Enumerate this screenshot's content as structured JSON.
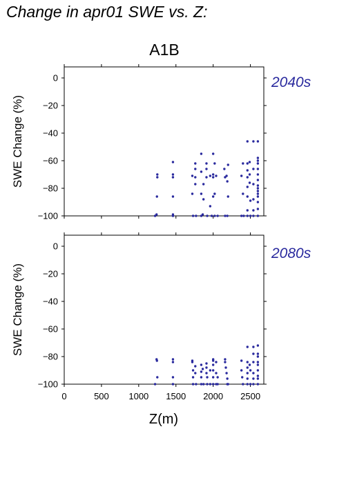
{
  "page_title": "Change in apr01 SWE vs. Z:",
  "chart_data": {
    "type": "scatter",
    "title": "A1B",
    "xlabel": "Z(m)",
    "ylabel": "SWE Change (%)",
    "xlim": [
      0,
      2680
    ],
    "ylim": [
      -100,
      8
    ],
    "xticks": [
      0,
      500,
      1000,
      1500,
      2000,
      2500
    ],
    "yticks": [
      0,
      -20,
      -40,
      -60,
      -80,
      -100
    ],
    "xtick_labels": [
      "0",
      "500",
      "1000",
      "1500",
      "2000",
      "2500"
    ],
    "ytick_labels": [
      "0",
      "−20",
      "−40",
      "−60",
      "−80",
      "−100"
    ],
    "point_color": "#2a2a9e",
    "panels": [
      {
        "label": "2040s",
        "points": [
          [
            1220,
            -100
          ],
          [
            1240,
            -99
          ],
          [
            1245,
            -86
          ],
          [
            1250,
            -70
          ],
          [
            1250,
            -72
          ],
          [
            1460,
            -61
          ],
          [
            1460,
            -70
          ],
          [
            1460,
            -72
          ],
          [
            1460,
            -86
          ],
          [
            1460,
            -99
          ],
          [
            1460,
            -100
          ],
          [
            1720,
            -71
          ],
          [
            1720,
            -84
          ],
          [
            1730,
            -100
          ],
          [
            1760,
            -62
          ],
          [
            1760,
            -66
          ],
          [
            1760,
            -72
          ],
          [
            1760,
            -77
          ],
          [
            1770,
            -100
          ],
          [
            1840,
            -55
          ],
          [
            1840,
            -68
          ],
          [
            1840,
            -84
          ],
          [
            1840,
            -100
          ],
          [
            1860,
            -99
          ],
          [
            1870,
            -77
          ],
          [
            1870,
            -88
          ],
          [
            1910,
            -62
          ],
          [
            1910,
            -66
          ],
          [
            1910,
            -72
          ],
          [
            1920,
            -100
          ],
          [
            1960,
            -71
          ],
          [
            1960,
            -93
          ],
          [
            1980,
            -100
          ],
          [
            2000,
            -55
          ],
          [
            2000,
            -70
          ],
          [
            2000,
            -72
          ],
          [
            2000,
            -86
          ],
          [
            2020,
            -62
          ],
          [
            2020,
            -84
          ],
          [
            2020,
            -100
          ],
          [
            2040,
            -71
          ],
          [
            2060,
            -100
          ],
          [
            2150,
            -66
          ],
          [
            2160,
            -72
          ],
          [
            2160,
            -100
          ],
          [
            2180,
            -71
          ],
          [
            2190,
            -75
          ],
          [
            2190,
            -100
          ],
          [
            2200,
            -63
          ],
          [
            2200,
            -86
          ],
          [
            2380,
            -71
          ],
          [
            2380,
            -100
          ],
          [
            2400,
            -62
          ],
          [
            2400,
            -84
          ],
          [
            2410,
            -100
          ],
          [
            2460,
            -46
          ],
          [
            2460,
            -62
          ],
          [
            2460,
            -67
          ],
          [
            2460,
            -72
          ],
          [
            2460,
            -79
          ],
          [
            2460,
            -86
          ],
          [
            2460,
            -96
          ],
          [
            2460,
            -100
          ],
          [
            2490,
            -61
          ],
          [
            2490,
            -70
          ],
          [
            2490,
            -76
          ],
          [
            2500,
            -89
          ],
          [
            2500,
            -100
          ],
          [
            2540,
            -46
          ],
          [
            2540,
            -66
          ],
          [
            2540,
            -77
          ],
          [
            2540,
            -88
          ],
          [
            2540,
            -96
          ],
          [
            2540,
            -100
          ],
          [
            2600,
            -46
          ],
          [
            2600,
            -58
          ],
          [
            2600,
            -60
          ],
          [
            2600,
            -62
          ],
          [
            2600,
            -66
          ],
          [
            2600,
            -70
          ],
          [
            2600,
            -74
          ],
          [
            2600,
            -78
          ],
          [
            2600,
            -80
          ],
          [
            2600,
            -82
          ],
          [
            2600,
            -84
          ],
          [
            2600,
            -86
          ],
          [
            2600,
            -90
          ],
          [
            2600,
            -95
          ],
          [
            2600,
            -100
          ]
        ]
      },
      {
        "label": "2080s",
        "points": [
          [
            1220,
            -100
          ],
          [
            1240,
            -82
          ],
          [
            1245,
            -83
          ],
          [
            1250,
            -95
          ],
          [
            1460,
            -82
          ],
          [
            1460,
            -84
          ],
          [
            1460,
            -95
          ],
          [
            1460,
            -100
          ],
          [
            1720,
            -83
          ],
          [
            1720,
            -84
          ],
          [
            1730,
            -90
          ],
          [
            1730,
            -95
          ],
          [
            1730,
            -100
          ],
          [
            1760,
            -87
          ],
          [
            1760,
            -92
          ],
          [
            1770,
            -100
          ],
          [
            1840,
            -86
          ],
          [
            1840,
            -91
          ],
          [
            1840,
            -95
          ],
          [
            1840,
            -100
          ],
          [
            1860,
            -89
          ],
          [
            1870,
            -100
          ],
          [
            1910,
            -85
          ],
          [
            1910,
            -88
          ],
          [
            1910,
            -92
          ],
          [
            1920,
            -95
          ],
          [
            1920,
            -100
          ],
          [
            1960,
            -90
          ],
          [
            1960,
            -100
          ],
          [
            2000,
            -82
          ],
          [
            2000,
            -83
          ],
          [
            2000,
            -86
          ],
          [
            2000,
            -90
          ],
          [
            2000,
            -95
          ],
          [
            2000,
            -100
          ],
          [
            2040,
            -84
          ],
          [
            2040,
            -92
          ],
          [
            2040,
            -100
          ],
          [
            2060,
            -95
          ],
          [
            2060,
            -100
          ],
          [
            2160,
            -82
          ],
          [
            2160,
            -84
          ],
          [
            2170,
            -88
          ],
          [
            2180,
            -92
          ],
          [
            2190,
            -96
          ],
          [
            2190,
            -100
          ],
          [
            2200,
            -100
          ],
          [
            2380,
            -83
          ],
          [
            2380,
            -90
          ],
          [
            2390,
            -95
          ],
          [
            2400,
            -100
          ],
          [
            2460,
            -73
          ],
          [
            2460,
            -84
          ],
          [
            2460,
            -88
          ],
          [
            2460,
            -92
          ],
          [
            2460,
            -96
          ],
          [
            2460,
            -100
          ],
          [
            2490,
            -86
          ],
          [
            2500,
            -90
          ],
          [
            2500,
            -100
          ],
          [
            2540,
            -73
          ],
          [
            2540,
            -78
          ],
          [
            2540,
            -84
          ],
          [
            2540,
            -92
          ],
          [
            2540,
            -96
          ],
          [
            2540,
            -100
          ],
          [
            2600,
            -72
          ],
          [
            2600,
            -78
          ],
          [
            2600,
            -80
          ],
          [
            2600,
            -84
          ],
          [
            2600,
            -86
          ],
          [
            2600,
            -90
          ],
          [
            2600,
            -94
          ],
          [
            2600,
            -96
          ],
          [
            2600,
            -100
          ]
        ]
      }
    ]
  }
}
